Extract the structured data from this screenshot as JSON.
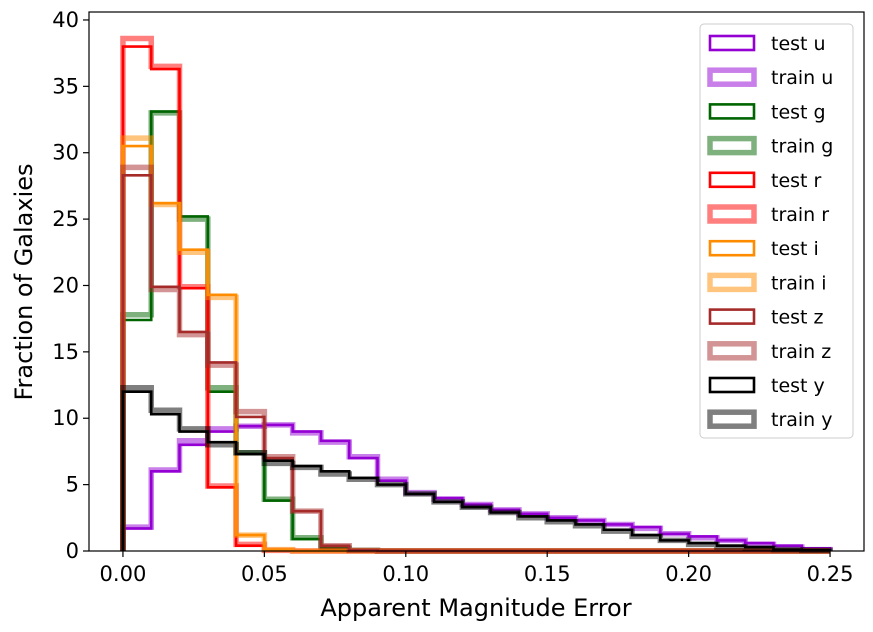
{
  "chart_data": {
    "type": "histogram",
    "xlabel": "Apparent Magnitude Error",
    "ylabel": "Fraction of Galaxies",
    "xlim": [
      -0.012,
      0.262
    ],
    "ylim": [
      0,
      40.6
    ],
    "xticks": [
      0.0,
      0.05,
      0.1,
      0.15,
      0.2,
      0.25
    ],
    "xtick_labels": [
      "0.00",
      "0.05",
      "0.10",
      "0.15",
      "0.20",
      "0.25"
    ],
    "yticks": [
      0,
      5,
      10,
      15,
      20,
      25,
      30,
      35,
      40
    ],
    "ytick_labels": [
      "0",
      "5",
      "10",
      "15",
      "20",
      "25",
      "30",
      "35",
      "40"
    ],
    "grid": false,
    "legend_position": "top-right",
    "bin_edges": [
      0.0,
      0.01,
      0.02,
      0.03,
      0.04,
      0.05,
      0.06,
      0.07,
      0.08,
      0.09,
      0.1,
      0.11,
      0.12,
      0.13,
      0.14,
      0.15,
      0.16,
      0.17,
      0.18,
      0.19,
      0.2,
      0.21,
      0.22,
      0.23,
      0.24,
      0.25
    ],
    "series": [
      {
        "name": "test u",
        "color": "#9400d3",
        "style": "test",
        "values": [
          1.7,
          6.0,
          8.0,
          9.0,
          9.4,
          9.5,
          9.0,
          8.3,
          7.0,
          5.3,
          4.3,
          4.0,
          3.5,
          3.1,
          2.8,
          2.5,
          2.3,
          2.0,
          1.8,
          1.3,
          1.1,
          0.8,
          0.6,
          0.4,
          0.2
        ]
      },
      {
        "name": "train u",
        "color": "#9400d3",
        "style": "train",
        "values": [
          1.8,
          6.1,
          8.3,
          9.2,
          9.4,
          9.5,
          8.9,
          8.2,
          7.1,
          5.4,
          4.4,
          3.9,
          3.5,
          3.1,
          2.8,
          2.5,
          2.3,
          2.0,
          1.7,
          1.3,
          1.0,
          0.8,
          0.5,
          0.3,
          0.1
        ]
      },
      {
        "name": "test g",
        "color": "#006400",
        "style": "test",
        "values": [
          17.4,
          33.1,
          25.2,
          12.0,
          7.3,
          3.8,
          0.9,
          0.2,
          0.05,
          0,
          0,
          0,
          0,
          0,
          0,
          0,
          0,
          0,
          0,
          0,
          0,
          0,
          0,
          0,
          0
        ]
      },
      {
        "name": "train g",
        "color": "#006400",
        "style": "train",
        "values": [
          17.8,
          33.0,
          25.0,
          12.3,
          7.4,
          3.9,
          1.0,
          0.2,
          0.05,
          0,
          0,
          0,
          0,
          0,
          0,
          0,
          0,
          0,
          0,
          0,
          0,
          0,
          0,
          0,
          0
        ]
      },
      {
        "name": "test r",
        "color": "#ff0000",
        "style": "test",
        "values": [
          38.0,
          36.3,
          19.8,
          4.8,
          0.4,
          0.05,
          0,
          0,
          0,
          0,
          0,
          0,
          0,
          0,
          0,
          0,
          0,
          0,
          0,
          0,
          0,
          0,
          0,
          0,
          0
        ]
      },
      {
        "name": "train r",
        "color": "#ff0000",
        "style": "train",
        "values": [
          38.6,
          36.5,
          19.9,
          4.9,
          0.5,
          0.05,
          0,
          0,
          0,
          0,
          0,
          0,
          0,
          0,
          0,
          0,
          0,
          0,
          0,
          0,
          0,
          0,
          0,
          0,
          0
        ]
      },
      {
        "name": "test i",
        "color": "#ff8c00",
        "style": "test",
        "values": [
          30.5,
          26.2,
          22.7,
          19.3,
          1.2,
          0.1,
          0,
          0,
          0,
          0,
          0,
          0,
          0,
          0,
          0,
          0,
          0,
          0,
          0,
          0,
          0,
          0,
          0,
          0,
          0
        ]
      },
      {
        "name": "train i",
        "color": "#ff8c00",
        "style": "train",
        "values": [
          31.1,
          26.1,
          22.5,
          19.1,
          1.2,
          0.1,
          0,
          0,
          0,
          0,
          0,
          0,
          0,
          0,
          0,
          0,
          0,
          0,
          0,
          0,
          0,
          0,
          0,
          0,
          0
        ]
      },
      {
        "name": "test z",
        "color": "#a52a2a",
        "style": "test",
        "values": [
          28.3,
          19.9,
          16.5,
          14.2,
          10.1,
          7.0,
          3.0,
          0.4,
          0.05,
          0,
          0,
          0,
          0,
          0,
          0,
          0,
          0,
          0,
          0,
          0,
          0,
          0,
          0,
          0,
          0
        ]
      },
      {
        "name": "train z",
        "color": "#a52a2a",
        "style": "train",
        "values": [
          28.9,
          19.7,
          16.3,
          14.0,
          10.5,
          7.1,
          3.0,
          0.4,
          0.05,
          0,
          0,
          0,
          0,
          0,
          0,
          0,
          0,
          0,
          0,
          0,
          0,
          0,
          0,
          0,
          0
        ]
      },
      {
        "name": "test y",
        "color": "#000000",
        "style": "test",
        "values": [
          12.0,
          10.3,
          9.0,
          8.2,
          7.3,
          6.8,
          6.4,
          6.0,
          5.5,
          5.0,
          4.3,
          3.7,
          3.3,
          2.9,
          2.6,
          2.3,
          2.0,
          1.6,
          1.2,
          0.8,
          0.6,
          0.4,
          0.3,
          0.1,
          0.05
        ]
      },
      {
        "name": "train y",
        "color": "#000000",
        "style": "train",
        "values": [
          12.3,
          10.6,
          9.2,
          8.0,
          7.4,
          6.6,
          6.3,
          5.8,
          5.4,
          5.0,
          4.3,
          3.7,
          3.3,
          2.9,
          2.5,
          2.2,
          1.9,
          1.5,
          1.1,
          0.8,
          0.5,
          0.3,
          0.2,
          0.1,
          0.05
        ]
      }
    ]
  }
}
